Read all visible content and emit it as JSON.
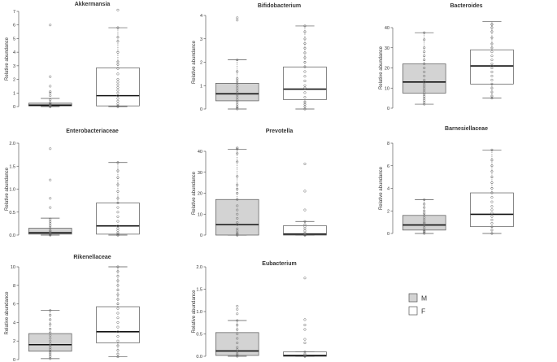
{
  "legend": {
    "entries": [
      {
        "label": "M",
        "color": "#d3d3d3"
      },
      {
        "label": "F",
        "color": "#ffffff"
      }
    ]
  },
  "colors": {
    "M": "#d3d3d3",
    "F": "#ffffff",
    "line": "#555555"
  },
  "chart_data": [
    {
      "type": "box",
      "title": "Akkermansia",
      "ylabel": "Relative abundance",
      "ylim": [
        0,
        7
      ],
      "yticks": [
        "0",
        "1",
        "2",
        "3",
        "4",
        "5",
        "6",
        "7"
      ],
      "ytick_values": [
        0,
        1,
        2,
        3,
        4,
        5,
        6,
        7
      ],
      "series": [
        {
          "name": "M",
          "min": 0,
          "q1": 0.05,
          "median": 0.1,
          "q3": 0.25,
          "max": 0.6,
          "points": [
            0,
            0,
            0,
            0,
            0.02,
            0.05,
            0.08,
            0.1,
            0.12,
            0.15,
            0.2,
            0.3,
            0.5,
            0.8,
            1.0,
            1.1,
            1.5,
            2.2,
            6.0
          ]
        },
        {
          "name": "F",
          "min": 0,
          "q1": 0.05,
          "median": 0.8,
          "q3": 2.85,
          "max": 5.8,
          "points": [
            0,
            0,
            0.05,
            0.2,
            0.4,
            0.6,
            0.8,
            1.0,
            1.2,
            1.4,
            1.6,
            1.8,
            2.0,
            2.4,
            2.8,
            3.1,
            3.3,
            4.0,
            4.8,
            5.1,
            5.8,
            7.1
          ]
        }
      ]
    },
    {
      "type": "box",
      "title": "Bifidobacterium",
      "ylabel": "Relative abundance",
      "ylim": [
        0,
        4
      ],
      "yticks": [
        "0",
        "1",
        "2",
        "3",
        "4"
      ],
      "ytick_values": [
        0,
        1,
        2,
        3,
        4
      ],
      "series": [
        {
          "name": "M",
          "min": 0,
          "q1": 0.35,
          "median": 0.65,
          "q3": 1.1,
          "max": 2.1,
          "points": [
            0,
            0.05,
            0.1,
            0.2,
            0.3,
            0.4,
            0.5,
            0.6,
            0.65,
            0.7,
            0.8,
            0.9,
            1.0,
            1.1,
            1.2,
            1.3,
            1.6,
            2.1,
            3.8,
            3.9
          ]
        },
        {
          "name": "F",
          "min": 0,
          "q1": 0.4,
          "median": 0.85,
          "q3": 1.8,
          "max": 3.55,
          "points": [
            0,
            0.1,
            0.2,
            0.3,
            0.5,
            0.7,
            0.9,
            1.0,
            1.2,
            1.4,
            1.6,
            1.8,
            2.0,
            2.2,
            2.4,
            2.6,
            2.8,
            3.0,
            3.3,
            3.55
          ]
        }
      ]
    },
    {
      "type": "box",
      "title": "Bacteroides",
      "ylabel": "Relative abundance",
      "ylim": [
        0,
        40
      ],
      "yticks": [
        "0",
        "10",
        "20",
        "30",
        "40"
      ],
      "ytick_values": [
        0,
        10,
        20,
        30,
        40
      ],
      "series": [
        {
          "name": "M",
          "min": 2,
          "q1": 7.5,
          "median": 13,
          "q3": 22,
          "max": 37.5,
          "points": [
            2,
            3,
            4,
            5,
            6,
            7,
            8,
            9,
            10,
            11,
            12,
            13,
            14,
            16,
            18,
            20,
            22,
            24,
            26,
            28,
            30,
            34,
            37.5
          ]
        },
        {
          "name": "F",
          "min": 5,
          "q1": 12,
          "median": 21,
          "q3": 29,
          "max": 43,
          "points": [
            5,
            6,
            8,
            10,
            12,
            14,
            16,
            18,
            20,
            21,
            22,
            24,
            26,
            28,
            30,
            32,
            35,
            38,
            40,
            42,
            43
          ]
        }
      ]
    },
    {
      "type": "box",
      "title": "Enterobacteriaceae",
      "ylabel": "Relative abundance",
      "ylim": [
        0,
        2.0
      ],
      "yticks": [
        "0.0",
        "0.5",
        "1.0",
        "1.5",
        "2.0"
      ],
      "ytick_values": [
        0,
        0.5,
        1.0,
        1.5,
        2.0
      ],
      "series": [
        {
          "name": "M",
          "min": 0,
          "q1": 0.02,
          "median": 0.05,
          "q3": 0.15,
          "max": 0.37,
          "points": [
            0,
            0,
            0.01,
            0.02,
            0.03,
            0.05,
            0.08,
            0.1,
            0.15,
            0.2,
            0.25,
            0.3,
            0.35,
            0.6,
            0.8,
            1.2,
            1.88
          ]
        },
        {
          "name": "F",
          "min": 0,
          "q1": 0.02,
          "median": 0.2,
          "q3": 0.7,
          "max": 1.58,
          "points": [
            0,
            0,
            0.02,
            0.05,
            0.1,
            0.15,
            0.2,
            0.3,
            0.4,
            0.5,
            0.6,
            0.7,
            0.8,
            0.95,
            1.1,
            1.25,
            1.4,
            1.58
          ]
        }
      ]
    },
    {
      "type": "box",
      "title": "Prevotella",
      "ylabel": "Relative abundance",
      "ylim": [
        0,
        40
      ],
      "yticks": [
        "0",
        "10",
        "20",
        "30",
        "40"
      ],
      "ytick_values": [
        0,
        10,
        20,
        30,
        40
      ],
      "series": [
        {
          "name": "M",
          "min": 0,
          "q1": 0,
          "median": 5,
          "q3": 17,
          "max": 41,
          "points": [
            0,
            0,
            0,
            0.5,
            1,
            2,
            3,
            5,
            6,
            8,
            10,
            12,
            14,
            17,
            20,
            22,
            24,
            28,
            35,
            39,
            41,
            43,
            45
          ]
        },
        {
          "name": "F",
          "min": 0,
          "q1": 0,
          "median": 0.5,
          "q3": 4.5,
          "max": 6.5,
          "points": [
            0,
            0,
            0,
            0,
            0.2,
            0.5,
            1,
            2,
            3,
            4,
            5,
            6.5,
            12,
            21,
            34
          ]
        }
      ]
    },
    {
      "type": "box",
      "title": "Barnesiellaceae",
      "ylabel": "Relative abundance",
      "ylim": [
        0,
        8
      ],
      "yticks": [
        "0",
        "2",
        "4",
        "6",
        "8"
      ],
      "ytick_values": [
        0,
        2,
        4,
        6,
        8
      ],
      "series": [
        {
          "name": "M",
          "min": 0,
          "q1": 0.3,
          "median": 0.75,
          "q3": 1.6,
          "max": 3.0,
          "points": [
            0,
            0.1,
            0.2,
            0.3,
            0.5,
            0.7,
            0.9,
            1.0,
            1.2,
            1.4,
            1.6,
            1.8,
            2.0,
            2.3,
            2.6,
            3.0
          ]
        },
        {
          "name": "F",
          "min": 0,
          "q1": 0.6,
          "median": 1.7,
          "q3": 3.6,
          "max": 7.4,
          "points": [
            0,
            0.3,
            0.6,
            0.9,
            1.2,
            1.5,
            1.8,
            2.1,
            2.4,
            2.8,
            3.2,
            3.6,
            4.0,
            4.5,
            5.0,
            5.5,
            6.0,
            6.5,
            7.4
          ]
        }
      ]
    },
    {
      "type": "box",
      "title": "Rikenellaceae",
      "ylabel": "Relative abundance",
      "ylim": [
        0,
        10
      ],
      "yticks": [
        "0",
        "2",
        "4",
        "6",
        "8",
        "10"
      ],
      "ytick_values": [
        0,
        2,
        4,
        6,
        8,
        10
      ],
      "series": [
        {
          "name": "M",
          "min": 0.1,
          "q1": 0.9,
          "median": 1.6,
          "q3": 2.8,
          "max": 5.3,
          "points": [
            0.1,
            0.3,
            0.5,
            0.7,
            0.9,
            1.1,
            1.3,
            1.5,
            1.7,
            2.0,
            2.3,
            2.6,
            2.9,
            3.3,
            3.8,
            4.3,
            4.8,
            5.3
          ]
        },
        {
          "name": "F",
          "min": 0.3,
          "q1": 1.8,
          "median": 3.0,
          "q3": 5.7,
          "max": 10,
          "points": [
            0.3,
            0.6,
            1.0,
            1.5,
            2.0,
            2.5,
            3.0,
            3.5,
            4.0,
            4.5,
            5.0,
            5.5,
            6.0,
            6.5,
            7.0,
            7.5,
            8.0,
            8.5,
            9.0,
            9.5,
            10
          ]
        }
      ]
    },
    {
      "type": "box",
      "title": "Eubacterium",
      "ylabel": "Relative abundance",
      "ylim": [
        0,
        2.0
      ],
      "yticks": [
        "0.0",
        "0.5",
        "1.0",
        "1.5",
        "2.0"
      ],
      "ytick_values": [
        0,
        0.5,
        1.0,
        1.5,
        2.0
      ],
      "series": [
        {
          "name": "M",
          "min": 0,
          "q1": 0.02,
          "median": 0.12,
          "q3": 0.53,
          "max": 0.8,
          "points": [
            0,
            0.02,
            0.05,
            0.1,
            0.15,
            0.2,
            0.3,
            0.4,
            0.5,
            0.6,
            0.7,
            0.8,
            0.95,
            1.05,
            1.12
          ]
        },
        {
          "name": "F",
          "min": 0,
          "q1": 0,
          "median": 0.02,
          "q3": 0.1,
          "max": 0.1,
          "points": [
            0,
            0,
            0,
            0.01,
            0.02,
            0.05,
            0.1,
            0.3,
            0.38,
            0.6,
            0.7,
            0.82,
            1.75
          ]
        }
      ]
    }
  ]
}
